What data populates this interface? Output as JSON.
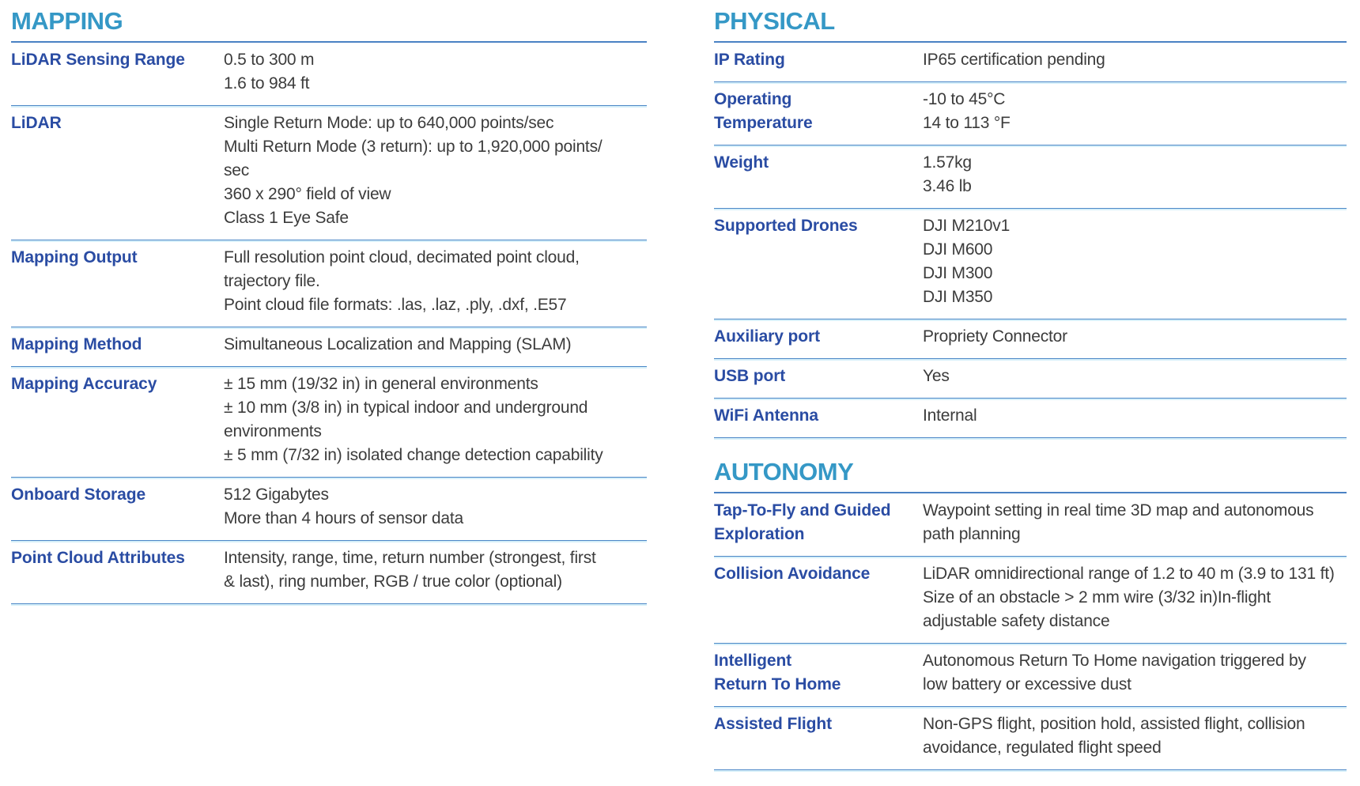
{
  "colors": {
    "background": "#ffffff",
    "section_title": "#3598c6",
    "label": "#2a4ca3",
    "value": "#3c3c3c",
    "divider": "#4d88c7",
    "header_rule": "#4a82c4"
  },
  "columns": [
    {
      "name": "left",
      "sections": [
        {
          "title": "MAPPING",
          "rows": [
            {
              "label_lines": [
                "LiDAR Sensing Range"
              ],
              "value_lines": [
                "0.5 to 300 m",
                "1.6 to 984 ft"
              ]
            },
            {
              "label_lines": [
                "LiDAR"
              ],
              "value_lines": [
                "Single Return Mode: up to 640,000 points/sec",
                "Multi Return Mode (3 return): up to 1,920,000 points/",
                "sec",
                "360 x 290° field of view",
                "Class 1 Eye Safe"
              ]
            },
            {
              "label_lines": [
                "Mapping Output"
              ],
              "value_lines": [
                "Full resolution point cloud, decimated point cloud,",
                "trajectory file.",
                "Point cloud file formats:  .las, .laz, .ply, .dxf, .E57"
              ]
            },
            {
              "label_lines": [
                "Mapping Method"
              ],
              "value_lines": [
                "Simultaneous Localization and Mapping (SLAM)"
              ]
            },
            {
              "label_lines": [
                "Mapping Accuracy"
              ],
              "value_lines": [
                "± 15 mm (19/32 in) in general environments",
                "± 10 mm (3/8 in) in typical indoor and underground",
                "environments",
                "± 5 mm (7/32 in) isolated change detection capability"
              ]
            },
            {
              "label_lines": [
                "Onboard Storage"
              ],
              "value_lines": [
                "512 Gigabytes",
                "More than 4 hours of sensor data"
              ]
            },
            {
              "label_lines": [
                "Point Cloud Attributes"
              ],
              "value_lines": [
                "Intensity, range, time, return number (strongest, first",
                "& last), ring number, RGB / true color (optional)"
              ]
            }
          ]
        }
      ]
    },
    {
      "name": "right",
      "sections": [
        {
          "title": "PHYSICAL",
          "rows": [
            {
              "label_lines": [
                "IP Rating"
              ],
              "value_lines": [
                "IP65 certification pending"
              ]
            },
            {
              "label_lines": [
                "Operating",
                "Temperature"
              ],
              "value_lines": [
                "-10 to 45°C",
                "14 to 113 °F"
              ]
            },
            {
              "label_lines": [
                "Weight"
              ],
              "value_lines": [
                "1.57kg",
                "3.46 lb"
              ]
            },
            {
              "label_lines": [
                "Supported Drones"
              ],
              "value_lines": [
                "DJI M210v1",
                "DJI M600",
                "DJI M300",
                "DJI M350"
              ]
            },
            {
              "label_lines": [
                "Auxiliary port"
              ],
              "value_lines": [
                "Propriety Connector"
              ]
            },
            {
              "label_lines": [
                "USB port"
              ],
              "value_lines": [
                "Yes"
              ]
            },
            {
              "label_lines": [
                "WiFi Antenna"
              ],
              "value_lines": [
                "Internal"
              ]
            }
          ]
        },
        {
          "title": "AUTONOMY",
          "rows": [
            {
              "label_lines": [
                "Tap-To-Fly and Guided",
                "Exploration"
              ],
              "value_lines": [
                "Waypoint setting in real time 3D map and autonomous",
                "path planning"
              ]
            },
            {
              "label_lines": [
                "Collision Avoidance"
              ],
              "value_lines": [
                "LiDAR omnidirectional range of 1.2 to 40 m (3.9 to 131 ft)",
                "Size of an obstacle > 2 mm wire (3/32 in)In-flight",
                "adjustable safety distance"
              ]
            },
            {
              "label_lines": [
                "Intelligent",
                "Return To Home"
              ],
              "value_lines": [
                "Autonomous Return To Home navigation triggered by",
                "low battery or excessive dust"
              ]
            },
            {
              "label_lines": [
                "Assisted Flight"
              ],
              "value_lines": [
                "Non-GPS flight, position hold, assisted flight, collision",
                "avoidance, regulated flight speed"
              ]
            }
          ]
        }
      ]
    }
  ]
}
